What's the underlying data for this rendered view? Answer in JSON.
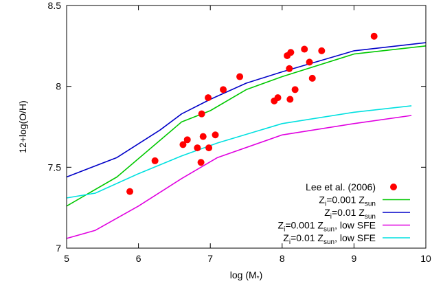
{
  "chart_data": {
    "type": "line",
    "xlabel": "log (M",
    "xlabel_sub": "*",
    "xlabel_close": ")",
    "ylabel": "12+log(O/H)",
    "xlim": [
      5,
      10
    ],
    "ylim": [
      7,
      8.5
    ],
    "xticks": [
      "5",
      "6",
      "7",
      "8",
      "9",
      "10"
    ],
    "yticks": [
      "7",
      "7.5",
      "8",
      "8.5"
    ],
    "grid": false,
    "legend_position": "bottom-right",
    "series": [
      {
        "name": "Lee et al. (2006)",
        "kind": "scatter",
        "color": "#ff0000",
        "points": [
          [
            5.88,
            7.35
          ],
          [
            6.23,
            7.54
          ],
          [
            6.62,
            7.64
          ],
          [
            6.68,
            7.67
          ],
          [
            6.82,
            7.62
          ],
          [
            6.87,
            7.53
          ],
          [
            6.9,
            7.69
          ],
          [
            6.98,
            7.62
          ],
          [
            7.07,
            7.7
          ],
          [
            6.88,
            7.83
          ],
          [
            6.97,
            7.93
          ],
          [
            7.18,
            7.98
          ],
          [
            7.41,
            8.06
          ],
          [
            7.89,
            7.91
          ],
          [
            7.94,
            7.93
          ],
          [
            8.11,
            7.92
          ],
          [
            8.18,
            7.98
          ],
          [
            8.42,
            8.05
          ],
          [
            8.07,
            8.19
          ],
          [
            8.12,
            8.21
          ],
          [
            8.1,
            8.11
          ],
          [
            8.31,
            8.23
          ],
          [
            8.38,
            8.15
          ],
          [
            8.55,
            8.22
          ],
          [
            9.28,
            8.31
          ]
        ]
      },
      {
        "name_main": "Z",
        "name_sub1": "i",
        "name_mid": "=0.001 Z",
        "name_sub2": "sun",
        "name_tail": "",
        "kind": "line",
        "color": "#00c800",
        "points": [
          [
            5.0,
            7.26
          ],
          [
            5.7,
            7.44
          ],
          [
            6.6,
            7.78
          ],
          [
            7.0,
            7.85
          ],
          [
            7.5,
            7.98
          ],
          [
            8.0,
            8.06
          ],
          [
            9.0,
            8.2
          ],
          [
            10.0,
            8.25
          ]
        ]
      },
      {
        "name_main": "Z",
        "name_sub1": "i",
        "name_mid": "=0.01 Z",
        "name_sub2": "sun",
        "name_tail": "",
        "kind": "line",
        "color": "#0000c8",
        "points": [
          [
            5.0,
            7.44
          ],
          [
            5.7,
            7.56
          ],
          [
            6.3,
            7.73
          ],
          [
            6.6,
            7.83
          ],
          [
            7.0,
            7.92
          ],
          [
            7.5,
            8.02
          ],
          [
            8.0,
            8.09
          ],
          [
            9.0,
            8.22
          ],
          [
            10.0,
            8.27
          ]
        ]
      },
      {
        "name_main": "Z",
        "name_sub1": "i",
        "name_mid": "=0.001 Z",
        "name_sub2": "sun",
        "name_tail": ", low SFE",
        "kind": "line",
        "color": "#e000e0",
        "points": [
          [
            5.0,
            7.06
          ],
          [
            5.4,
            7.11
          ],
          [
            6.0,
            7.26
          ],
          [
            6.6,
            7.43
          ],
          [
            7.1,
            7.56
          ],
          [
            8.0,
            7.7
          ],
          [
            9.0,
            7.77
          ],
          [
            9.8,
            7.82
          ]
        ]
      },
      {
        "name_main": "Z",
        "name_sub1": "i",
        "name_mid": "=0.01 Z",
        "name_sub2": "sun",
        "name_tail": ", low SFE",
        "kind": "line",
        "color": "#00e0e0",
        "points": [
          [
            5.0,
            7.31
          ],
          [
            5.4,
            7.34
          ],
          [
            6.0,
            7.46
          ],
          [
            6.6,
            7.57
          ],
          [
            7.1,
            7.65
          ],
          [
            8.0,
            7.77
          ],
          [
            9.0,
            7.84
          ],
          [
            9.8,
            7.88
          ]
        ]
      }
    ]
  }
}
